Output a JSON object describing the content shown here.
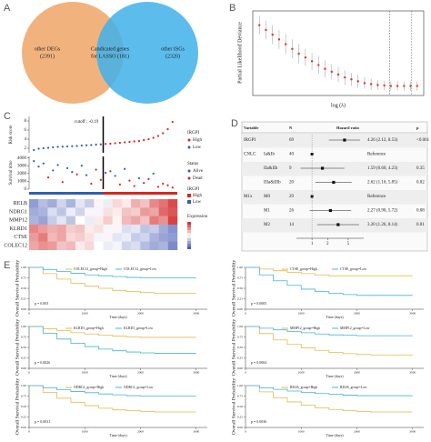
{
  "a": {
    "label": "A",
    "left": "other DEGs",
    "left_n": "(2391)",
    "center": "Candicated genes",
    "center2": "for LASSO (181)",
    "right": "other ISGs",
    "right_n": "(2320)",
    "left_color": "#f2b27e",
    "right_color": "#3fb1ea"
  },
  "b": {
    "label": "B",
    "ylabel": "Partial Likelihood Deviance",
    "xlabel": "log (λ)",
    "color": "#e0312b",
    "values": [
      0.98,
      0.93,
      0.88,
      0.83,
      0.78,
      0.73,
      0.68,
      0.64,
      0.6,
      0.56,
      0.52,
      0.49,
      0.46,
      0.43,
      0.41,
      0.39,
      0.37,
      0.36,
      0.35,
      0.345,
      0.34,
      0.34,
      0.34,
      0.34,
      0.34
    ],
    "errors": [
      0.1,
      0.1,
      0.1,
      0.1,
      0.1,
      0.1,
      0.1,
      0.09,
      0.09,
      0.09,
      0.09,
      0.08,
      0.08,
      0.08,
      0.07,
      0.07,
      0.06,
      0.06,
      0.05,
      0.05,
      0.05,
      0.05,
      0.05,
      0.05,
      0.05
    ]
  },
  "c": {
    "label": "C",
    "risk_label": "Risk score",
    "cutoff": "cutoff : -0.19",
    "risk_yticks": [
      2,
      4,
      6,
      8
    ],
    "risk_ylim": [
      1,
      9
    ],
    "risk_series": [
      {
        "name": "Low",
        "color": "#2f5fb3",
        "values": [
          1.6,
          1.9,
          2.0,
          2.1,
          2.2,
          2.3,
          2.35,
          2.4,
          2.45,
          2.5,
          2.6,
          2.65,
          2.7,
          2.8,
          2.85
        ]
      },
      {
        "name": "High",
        "color": "#d7261e",
        "values": [
          2.95,
          3.0,
          3.1,
          3.2,
          3.3,
          3.4,
          3.5,
          3.6,
          3.8,
          4.0,
          4.3,
          4.7,
          5.3,
          6.2,
          7.8
        ]
      }
    ],
    "group_title": "IRGPI",
    "time_label": "Survival time",
    "time_yticks": [
      0,
      1000,
      2000,
      3000,
      4000
    ],
    "time_ylim": [
      0,
      4200
    ],
    "status_title": "Status",
    "time_series": [
      {
        "name": "Alive",
        "color": "#2f5fb3",
        "x": [
          1,
          2,
          3,
          5,
          6,
          8,
          9,
          11,
          12,
          14,
          16,
          18,
          20,
          23,
          26
        ],
        "values": [
          3600,
          2900,
          3300,
          2400,
          3100,
          2700,
          2200,
          3000,
          1800,
          2500,
          2100,
          1700,
          2600,
          1400,
          2000
        ]
      },
      {
        "name": "Dead",
        "color": "#d7261e",
        "x": [
          4,
          7,
          10,
          13,
          15,
          17,
          19,
          21,
          22,
          24,
          25,
          27,
          28,
          29,
          30
        ],
        "values": [
          1500,
          900,
          1900,
          700,
          1200,
          2300,
          600,
          1100,
          400,
          800,
          1300,
          300,
          700,
          500,
          200
        ]
      }
    ],
    "expr_title": "Expression",
    "genes": [
      "RELB",
      "NDRG1",
      "MMP12",
      "KLRD1",
      "CTSE",
      "COLEC12"
    ],
    "heat": [
      [
        -1.2,
        -0.8,
        -1,
        -0.5,
        -0.9,
        -0.3,
        -0.6,
        0.1,
        -0.2,
        0.4,
        0.2,
        0.8,
        0.6,
        1.2,
        1.4,
        1.8
      ],
      [
        -1,
        -0.9,
        -0.4,
        -0.7,
        -0.2,
        -0.5,
        0.1,
        -0.1,
        0.3,
        0.2,
        0.6,
        0.5,
        1,
        0.9,
        1.5,
        1.7
      ],
      [
        -0.9,
        -1.1,
        -0.6,
        -0.3,
        -0.7,
        0,
        -0.2,
        0.2,
        0.5,
        0.1,
        0.7,
        0.9,
        0.6,
        1.3,
        1.1,
        1.9
      ],
      [
        1.2,
        1,
        0.8,
        0.9,
        0.5,
        0.6,
        0.2,
        0.3,
        -0.1,
        0.1,
        -0.4,
        -0.3,
        -0.7,
        -0.6,
        -1,
        -1.3
      ],
      [
        1,
        1.3,
        0.7,
        0.9,
        0.4,
        0.5,
        0.3,
        -0.1,
        0.1,
        -0.3,
        -0.2,
        -0.6,
        -0.5,
        -0.9,
        -1.1,
        -1.2
      ],
      [
        0.9,
        1.1,
        1,
        0.6,
        0.7,
        0.2,
        0.4,
        0,
        -0.2,
        -0.1,
        -0.5,
        -0.4,
        -0.8,
        -1,
        -0.9,
        -1.4
      ]
    ]
  },
  "d": {
    "label": "D",
    "head": [
      "Variable",
      "N",
      "Hazard ratio",
      "p"
    ],
    "xlim": [
      0.5,
      10
    ],
    "xticks": [
      1,
      2,
      5
    ],
    "rows": [
      {
        "var": "IRGPI",
        "n": 69,
        "hr": 4.26,
        "lo": 2.12,
        "hi": 8.53,
        "est": "4.26 (2.12, 8.53)",
        "p": "<0.001"
      },
      {
        "var": "CNLC",
        "sub": "Ia&Ib",
        "n": 40,
        "est": "Reference"
      },
      {
        "sub": "IIa&IIb",
        "n": 9,
        "hr": 1.59,
        "lo": 0.6,
        "hi": 4.23,
        "est": "1.59 (0.60, 4.23)",
        "p": "0.35"
      },
      {
        "sub": "IIIa&IIIb",
        "n": 20,
        "hr": 2.62,
        "lo": 1.16,
        "hi": 5.85,
        "est": "2.62 (1.16, 5.85)",
        "p": "0.02"
      },
      {
        "var": "M1x",
        "sub": "M0",
        "n": 29,
        "est": "Reference"
      },
      {
        "sub": "M1",
        "n": 26,
        "hr": 2.27,
        "lo": 0.9,
        "hi": 5.72,
        "est": "2.27 (0.90, 5.72)",
        "p": "0.08"
      },
      {
        "sub": "M2",
        "n": 14,
        "hr": 3.2,
        "lo": 1.26,
        "hi": 8.14,
        "est": "3.20 (1.26, 8.14)",
        "p": "0.01"
      }
    ]
  },
  "e": {
    "label": "E",
    "ylabel": "Overall Survival Probability",
    "xlabel": "Time (days)",
    "xlim": [
      0,
      3200
    ],
    "xticks": [
      0,
      1000,
      2000,
      3000
    ],
    "ylim": [
      0,
      1
    ],
    "yticks": [
      {
        "value": 0,
        "label": "0.00"
      },
      {
        "value": 0.25,
        "label": "0.25"
      },
      {
        "value": 0.5,
        "label": "0.50"
      },
      {
        "value": 0.75,
        "label": "0.75"
      },
      {
        "value": 1,
        "label": "1.00"
      }
    ],
    "x": [
      0,
      250,
      500,
      750,
      1000,
      1250,
      1500,
      1750,
      2000,
      2250,
      2500,
      2750,
      3000
    ],
    "plots": [
      {
        "high": "COLEC12_group=High",
        "low": "COLEC12_group=Low",
        "p": "p = 0.003",
        "hv": [
          1,
          0.85,
          0.72,
          0.62,
          0.55,
          0.5,
          0.45,
          0.42,
          0.4,
          0.38,
          0.38,
          0.38,
          0.38
        ],
        "lv": [
          1,
          0.95,
          0.9,
          0.86,
          0.82,
          0.8,
          0.78,
          0.76,
          0.75,
          0.75,
          0.75,
          0.75,
          0.75
        ]
      },
      {
        "high": "CTSE_group=High",
        "low": "CTSE_group=Low",
        "p": "p = 0.0005",
        "hv": [
          1,
          0.96,
          0.92,
          0.88,
          0.85,
          0.82,
          0.8,
          0.8,
          0.8,
          0.8,
          0.8,
          0.8,
          0.8
        ],
        "lv": [
          1,
          0.82,
          0.68,
          0.57,
          0.48,
          0.42,
          0.38,
          0.35,
          0.33,
          0.33,
          0.33,
          0.33,
          0.33
        ]
      },
      {
        "high": "KLRD1_group=High",
        "low": "KLRD1_group=Low",
        "p": "p = 0.0026",
        "hv": [
          1,
          0.95,
          0.9,
          0.85,
          0.82,
          0.79,
          0.77,
          0.75,
          0.74,
          0.74,
          0.74,
          0.74,
          0.74
        ],
        "lv": [
          1,
          0.84,
          0.7,
          0.6,
          0.52,
          0.46,
          0.42,
          0.39,
          0.37,
          0.36,
          0.36,
          0.36,
          0.36
        ]
      },
      {
        "high": "MMP12_group=High",
        "low": "MMP12_group=Low",
        "p": "p = 0.0004",
        "hv": [
          1,
          0.83,
          0.68,
          0.57,
          0.49,
          0.43,
          0.38,
          0.35,
          0.33,
          0.32,
          0.32,
          0.32,
          0.32
        ],
        "lv": [
          1,
          0.96,
          0.92,
          0.88,
          0.85,
          0.82,
          0.8,
          0.79,
          0.78,
          0.78,
          0.78,
          0.78,
          0.78
        ]
      },
      {
        "high": "NDRG1_group=High",
        "low": "NDRG1_group=Low",
        "p": "p = 0.0031",
        "hv": [
          1,
          0.84,
          0.7,
          0.6,
          0.52,
          0.46,
          0.42,
          0.4,
          0.38,
          0.37,
          0.37,
          0.37,
          0.37
        ],
        "lv": [
          1,
          0.95,
          0.9,
          0.86,
          0.83,
          0.8,
          0.78,
          0.76,
          0.75,
          0.75,
          0.75,
          0.75,
          0.75
        ]
      },
      {
        "high": "RELB_group=High",
        "low": "RELB_group=Low",
        "p": "p = 0.0036",
        "hv": [
          1,
          0.85,
          0.71,
          0.61,
          0.53,
          0.47,
          0.43,
          0.4,
          0.38,
          0.37,
          0.37,
          0.37,
          0.37
        ],
        "lv": [
          1,
          0.95,
          0.91,
          0.87,
          0.84,
          0.81,
          0.79,
          0.77,
          0.76,
          0.76,
          0.76,
          0.76,
          0.76
        ]
      }
    ],
    "high_color": "#e9b949",
    "low_color": "#47b0e3"
  }
}
